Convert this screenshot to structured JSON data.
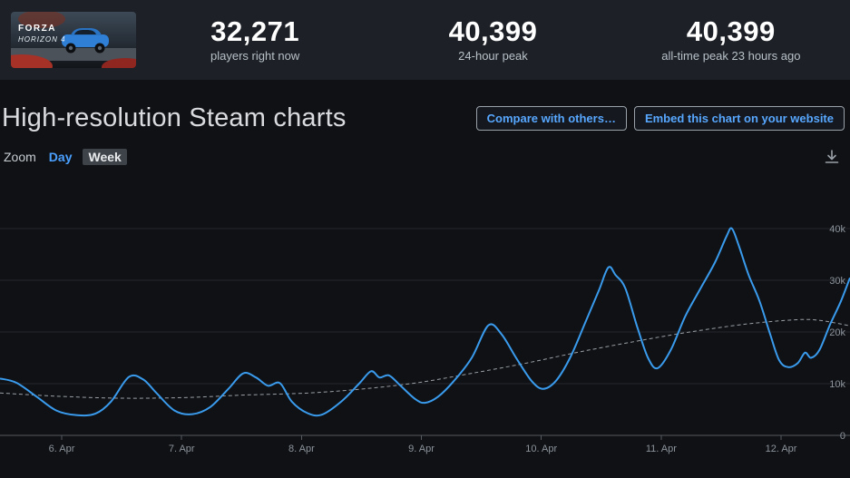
{
  "header": {
    "thumbnail": {
      "game_title": "FORZA",
      "game_subtitle": "HORIZON 4"
    },
    "stats": [
      {
        "value": "32,271",
        "label": "players right now"
      },
      {
        "value": "40,399",
        "label": "24-hour peak"
      },
      {
        "value": "40,399",
        "label": "all-time peak 23 hours ago"
      }
    ]
  },
  "main": {
    "title": "High-resolution Steam charts",
    "buttons": {
      "compare": "Compare with others…",
      "embed": "Embed this chart on your website"
    },
    "zoom": {
      "label": "Zoom",
      "day": "Day",
      "week": "Week",
      "active": "Week"
    }
  },
  "chart_data": {
    "type": "line",
    "title": "",
    "xlabel": "",
    "ylabel": "",
    "x_range": [
      5.485,
      12.575
    ],
    "ylim": [
      0,
      49600
    ],
    "grid": true,
    "legend": "none",
    "colors": {
      "players": "#3a9bed",
      "trend": "#9aa0a6"
    },
    "y_ticks": [
      {
        "v": 0,
        "label": "0"
      },
      {
        "v": 10000,
        "label": "10k"
      },
      {
        "v": 20000,
        "label": "20k"
      },
      {
        "v": 30000,
        "label": "30k"
      },
      {
        "v": 40000,
        "label": "40k"
      }
    ],
    "x_ticks": [
      {
        "day": 6,
        "label": "6. Apr"
      },
      {
        "day": 7,
        "label": "7. Apr"
      },
      {
        "day": 8,
        "label": "8. Apr"
      },
      {
        "day": 9,
        "label": "9. Apr"
      },
      {
        "day": 10,
        "label": "10. Apr"
      },
      {
        "day": 11,
        "label": "11. Apr"
      },
      {
        "day": 12,
        "label": "12. Apr"
      }
    ],
    "series": [
      {
        "name": "Players",
        "style": "solid",
        "width": 2,
        "points": [
          [
            5.485,
            11000
          ],
          [
            5.62,
            10200
          ],
          [
            5.79,
            7500
          ],
          [
            5.955,
            4800
          ],
          [
            6.13,
            3900
          ],
          [
            6.28,
            4200
          ],
          [
            6.41,
            6500
          ],
          [
            6.56,
            11300
          ],
          [
            6.68,
            10800
          ],
          [
            6.79,
            8200
          ],
          [
            6.94,
            4800
          ],
          [
            7.09,
            4100
          ],
          [
            7.24,
            5500
          ],
          [
            7.39,
            9000
          ],
          [
            7.515,
            12000
          ],
          [
            7.62,
            11200
          ],
          [
            7.72,
            9600
          ],
          [
            7.82,
            10100
          ],
          [
            7.92,
            6500
          ],
          [
            8.05,
            4300
          ],
          [
            8.17,
            4000
          ],
          [
            8.33,
            6500
          ],
          [
            8.48,
            10000
          ],
          [
            8.58,
            12400
          ],
          [
            8.65,
            11200
          ],
          [
            8.73,
            11600
          ],
          [
            8.83,
            9500
          ],
          [
            8.95,
            7000
          ],
          [
            9.03,
            6300
          ],
          [
            9.14,
            7500
          ],
          [
            9.27,
            10500
          ],
          [
            9.42,
            15000
          ],
          [
            9.56,
            21300
          ],
          [
            9.67,
            19500
          ],
          [
            9.79,
            15000
          ],
          [
            9.92,
            10500
          ],
          [
            10.015,
            9000
          ],
          [
            10.12,
            10500
          ],
          [
            10.24,
            15000
          ],
          [
            10.37,
            22000
          ],
          [
            10.48,
            28000
          ],
          [
            10.56,
            32500
          ],
          [
            10.62,
            31000
          ],
          [
            10.7,
            28500
          ],
          [
            10.8,
            21000
          ],
          [
            10.89,
            15000
          ],
          [
            10.97,
            13000
          ],
          [
            11.08,
            16500
          ],
          [
            11.2,
            23000
          ],
          [
            11.33,
            28500
          ],
          [
            11.45,
            33500
          ],
          [
            11.545,
            38500
          ],
          [
            11.59,
            40000
          ],
          [
            11.65,
            36500
          ],
          [
            11.73,
            31000
          ],
          [
            11.82,
            26000
          ],
          [
            11.91,
            19500
          ],
          [
            11.985,
            14500
          ],
          [
            12.06,
            13200
          ],
          [
            12.14,
            14000
          ],
          [
            12.2,
            16000
          ],
          [
            12.25,
            15000
          ],
          [
            12.32,
            16500
          ],
          [
            12.41,
            21500
          ],
          [
            12.5,
            26000
          ],
          [
            12.575,
            30500
          ]
        ]
      },
      {
        "name": "Trend",
        "style": "dashed",
        "width": 1,
        "points": [
          [
            5.485,
            8200
          ],
          [
            5.94,
            7600
          ],
          [
            6.47,
            7200
          ],
          [
            7.0,
            7300
          ],
          [
            7.53,
            7800
          ],
          [
            8.06,
            8200
          ],
          [
            8.52,
            9000
          ],
          [
            8.97,
            10200
          ],
          [
            9.42,
            12000
          ],
          [
            9.88,
            14000
          ],
          [
            10.33,
            16200
          ],
          [
            10.79,
            18200
          ],
          [
            11.24,
            20000
          ],
          [
            11.7,
            21500
          ],
          [
            12.08,
            22300
          ],
          [
            12.3,
            22300
          ],
          [
            12.575,
            21200
          ]
        ]
      }
    ]
  }
}
